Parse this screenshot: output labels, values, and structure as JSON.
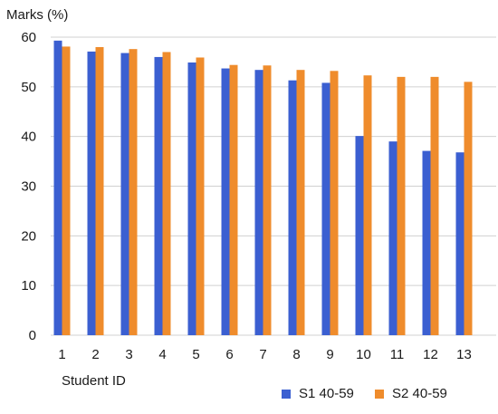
{
  "chart_data": {
    "type": "bar",
    "title": "",
    "ylabel": "Marks (%)",
    "xlabel": "Student ID",
    "categories": [
      "1",
      "2",
      "3",
      "4",
      "5",
      "6",
      "7",
      "8",
      "9",
      "10",
      "11",
      "12",
      "13"
    ],
    "ylim": [
      0,
      60
    ],
    "yticks": [
      0,
      10,
      20,
      30,
      40,
      50,
      60
    ],
    "grid": true,
    "legend_position": "bottom-right",
    "series": [
      {
        "name": "S1  40-59",
        "color": "#3b5fd1",
        "values": [
          59.3,
          57.1,
          56.8,
          56.0,
          54.9,
          53.7,
          53.4,
          51.3,
          50.8,
          40.1,
          39.0,
          37.1,
          36.8
        ]
      },
      {
        "name": "S2  40-59",
        "color": "#ef8c2c",
        "values": [
          58.1,
          58.0,
          57.6,
          57.0,
          55.9,
          54.4,
          54.3,
          53.4,
          53.2,
          52.3,
          52.0,
          52.0,
          51.0
        ]
      }
    ]
  }
}
